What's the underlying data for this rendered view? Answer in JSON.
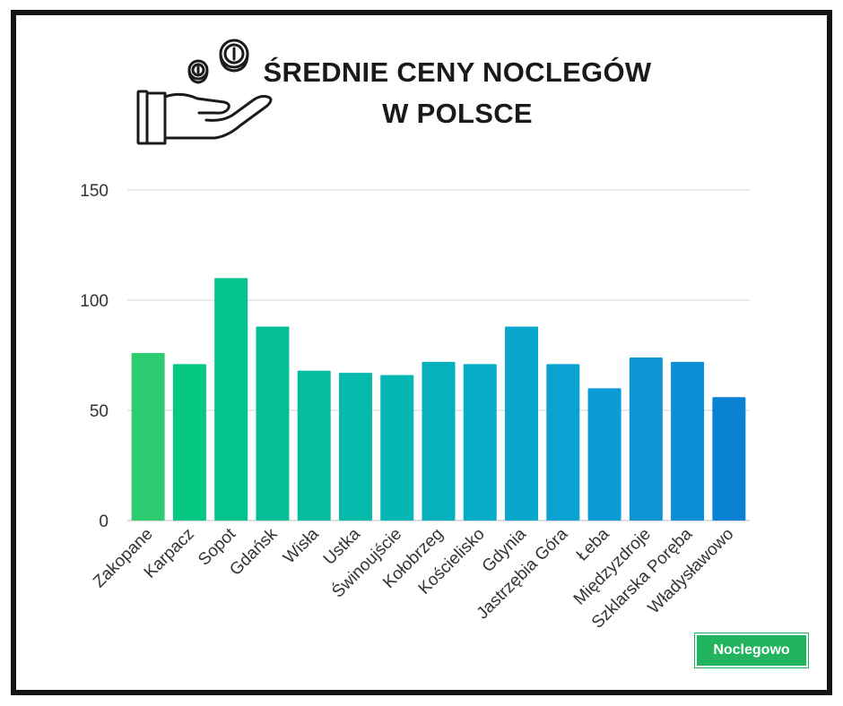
{
  "header": {
    "title_line1": "ŚREDNIE CENY NOCLEGÓW",
    "title_line2": "W POLSCE",
    "icon": "hand-with-coins-icon"
  },
  "brand": {
    "label": "Noclegowo",
    "color": "#22b35f"
  },
  "chart_data": {
    "type": "bar",
    "title": "ŚREDNIE CENY NOCLEGÓW W POLSCE",
    "xlabel": "",
    "ylabel": "",
    "ylim": [
      0,
      150
    ],
    "yticks": [
      0,
      50,
      100,
      150
    ],
    "grid": true,
    "legend": "none",
    "categories": [
      "Zakopane",
      "Karpacz",
      "Sopot",
      "Gdańsk",
      "Wisła",
      "Ustka",
      "Świnoujście",
      "Kołobrzeg",
      "Kościelisko",
      "Gdynia",
      "Jastrzębia Góra",
      "Łeba",
      "Międzyzdroje",
      "Szklarska Poręba",
      "Władysławowo"
    ],
    "values": [
      76,
      71,
      110,
      88,
      68,
      67,
      66,
      72,
      71,
      88,
      71,
      60,
      74,
      72,
      56
    ],
    "colors": [
      "#2ecc71",
      "#05c781",
      "#05c38e",
      "#05c096",
      "#05bc9f",
      "#05baaa",
      "#06b6b4",
      "#06b1bd",
      "#06acc6",
      "#08a7cb",
      "#0aa2d1",
      "#0c9bd4",
      "#0d95d6",
      "#0d8dd6",
      "#0a82d4"
    ]
  }
}
